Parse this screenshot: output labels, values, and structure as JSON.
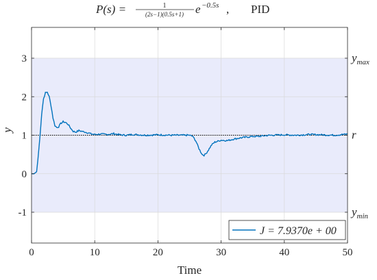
{
  "chart_data": {
    "type": "line",
    "title": {
      "math_prefix": "P(s) =",
      "frac_numerator": "1",
      "frac_denominator": "(2s−1)(0.5s+1)",
      "exp_base": "e",
      "exp_power": "−0.5s",
      "suffix": ",",
      "method": "PID"
    },
    "xlabel": "Time",
    "ylabel": "y",
    "xlim": [
      0,
      50
    ],
    "ylim": [
      -1.8,
      3.8
    ],
    "xticks": [
      0,
      10,
      20,
      30,
      40,
      50
    ],
    "xtick_labels": [
      "0",
      "10",
      "20",
      "30",
      "40",
      "50"
    ],
    "yticks": [
      -1,
      0,
      1,
      2,
      3
    ],
    "ytick_labels": [
      "-1",
      "0",
      "1",
      "2",
      "3"
    ],
    "grid": true,
    "band": {
      "y_min": -1,
      "y_max": 3,
      "color": "#e9ebfb"
    },
    "reference_line": {
      "y": 1,
      "style": "dotted",
      "color": "#000000"
    },
    "right_labels": [
      {
        "y": 3,
        "base": "y",
        "sub": "max"
      },
      {
        "y": 1,
        "base": "r",
        "sub": ""
      },
      {
        "y": -1,
        "base": "y",
        "sub": "min"
      }
    ],
    "legend": {
      "position": "bottom-right",
      "text": "J = 7.9370e + 00"
    },
    "series": [
      {
        "color": "#0072bd",
        "x": [
          0,
          0.4,
          0.8,
          1.0,
          1.3,
          1.6,
          1.9,
          2.2,
          2.5,
          2.8,
          3.1,
          3.4,
          3.7,
          4.0,
          4.3,
          4.6,
          5.0,
          5.4,
          5.8,
          6.2,
          6.6,
          7.0,
          7.5,
          8.0,
          8.5,
          9.0,
          9.5,
          10,
          11,
          12,
          13,
          14,
          15,
          16,
          18,
          20,
          22,
          24,
          25,
          25.5,
          26,
          26.5,
          27,
          27.3,
          27.6,
          28,
          28.5,
          29,
          30,
          31,
          32,
          33,
          34,
          35,
          36,
          37,
          38,
          40,
          42,
          44,
          46,
          48,
          50
        ],
        "y": [
          0.0,
          0.0,
          0.05,
          0.35,
          0.9,
          1.55,
          1.95,
          2.1,
          2.12,
          2.0,
          1.75,
          1.45,
          1.25,
          1.2,
          1.22,
          1.3,
          1.35,
          1.33,
          1.28,
          1.18,
          1.1,
          1.08,
          1.12,
          1.1,
          1.08,
          1.06,
          1.03,
          1.02,
          1.03,
          1.02,
          1.04,
          1.01,
          1.0,
          1.02,
          1.0,
          1.01,
          1.0,
          1.0,
          1.0,
          0.97,
          0.85,
          0.65,
          0.5,
          0.48,
          0.52,
          0.62,
          0.75,
          0.82,
          0.87,
          0.86,
          0.9,
          0.93,
          0.95,
          0.97,
          0.97,
          0.99,
          1.0,
          1.01,
          1.0,
          1.02,
          1.01,
          1.0,
          1.03
        ]
      }
    ]
  }
}
